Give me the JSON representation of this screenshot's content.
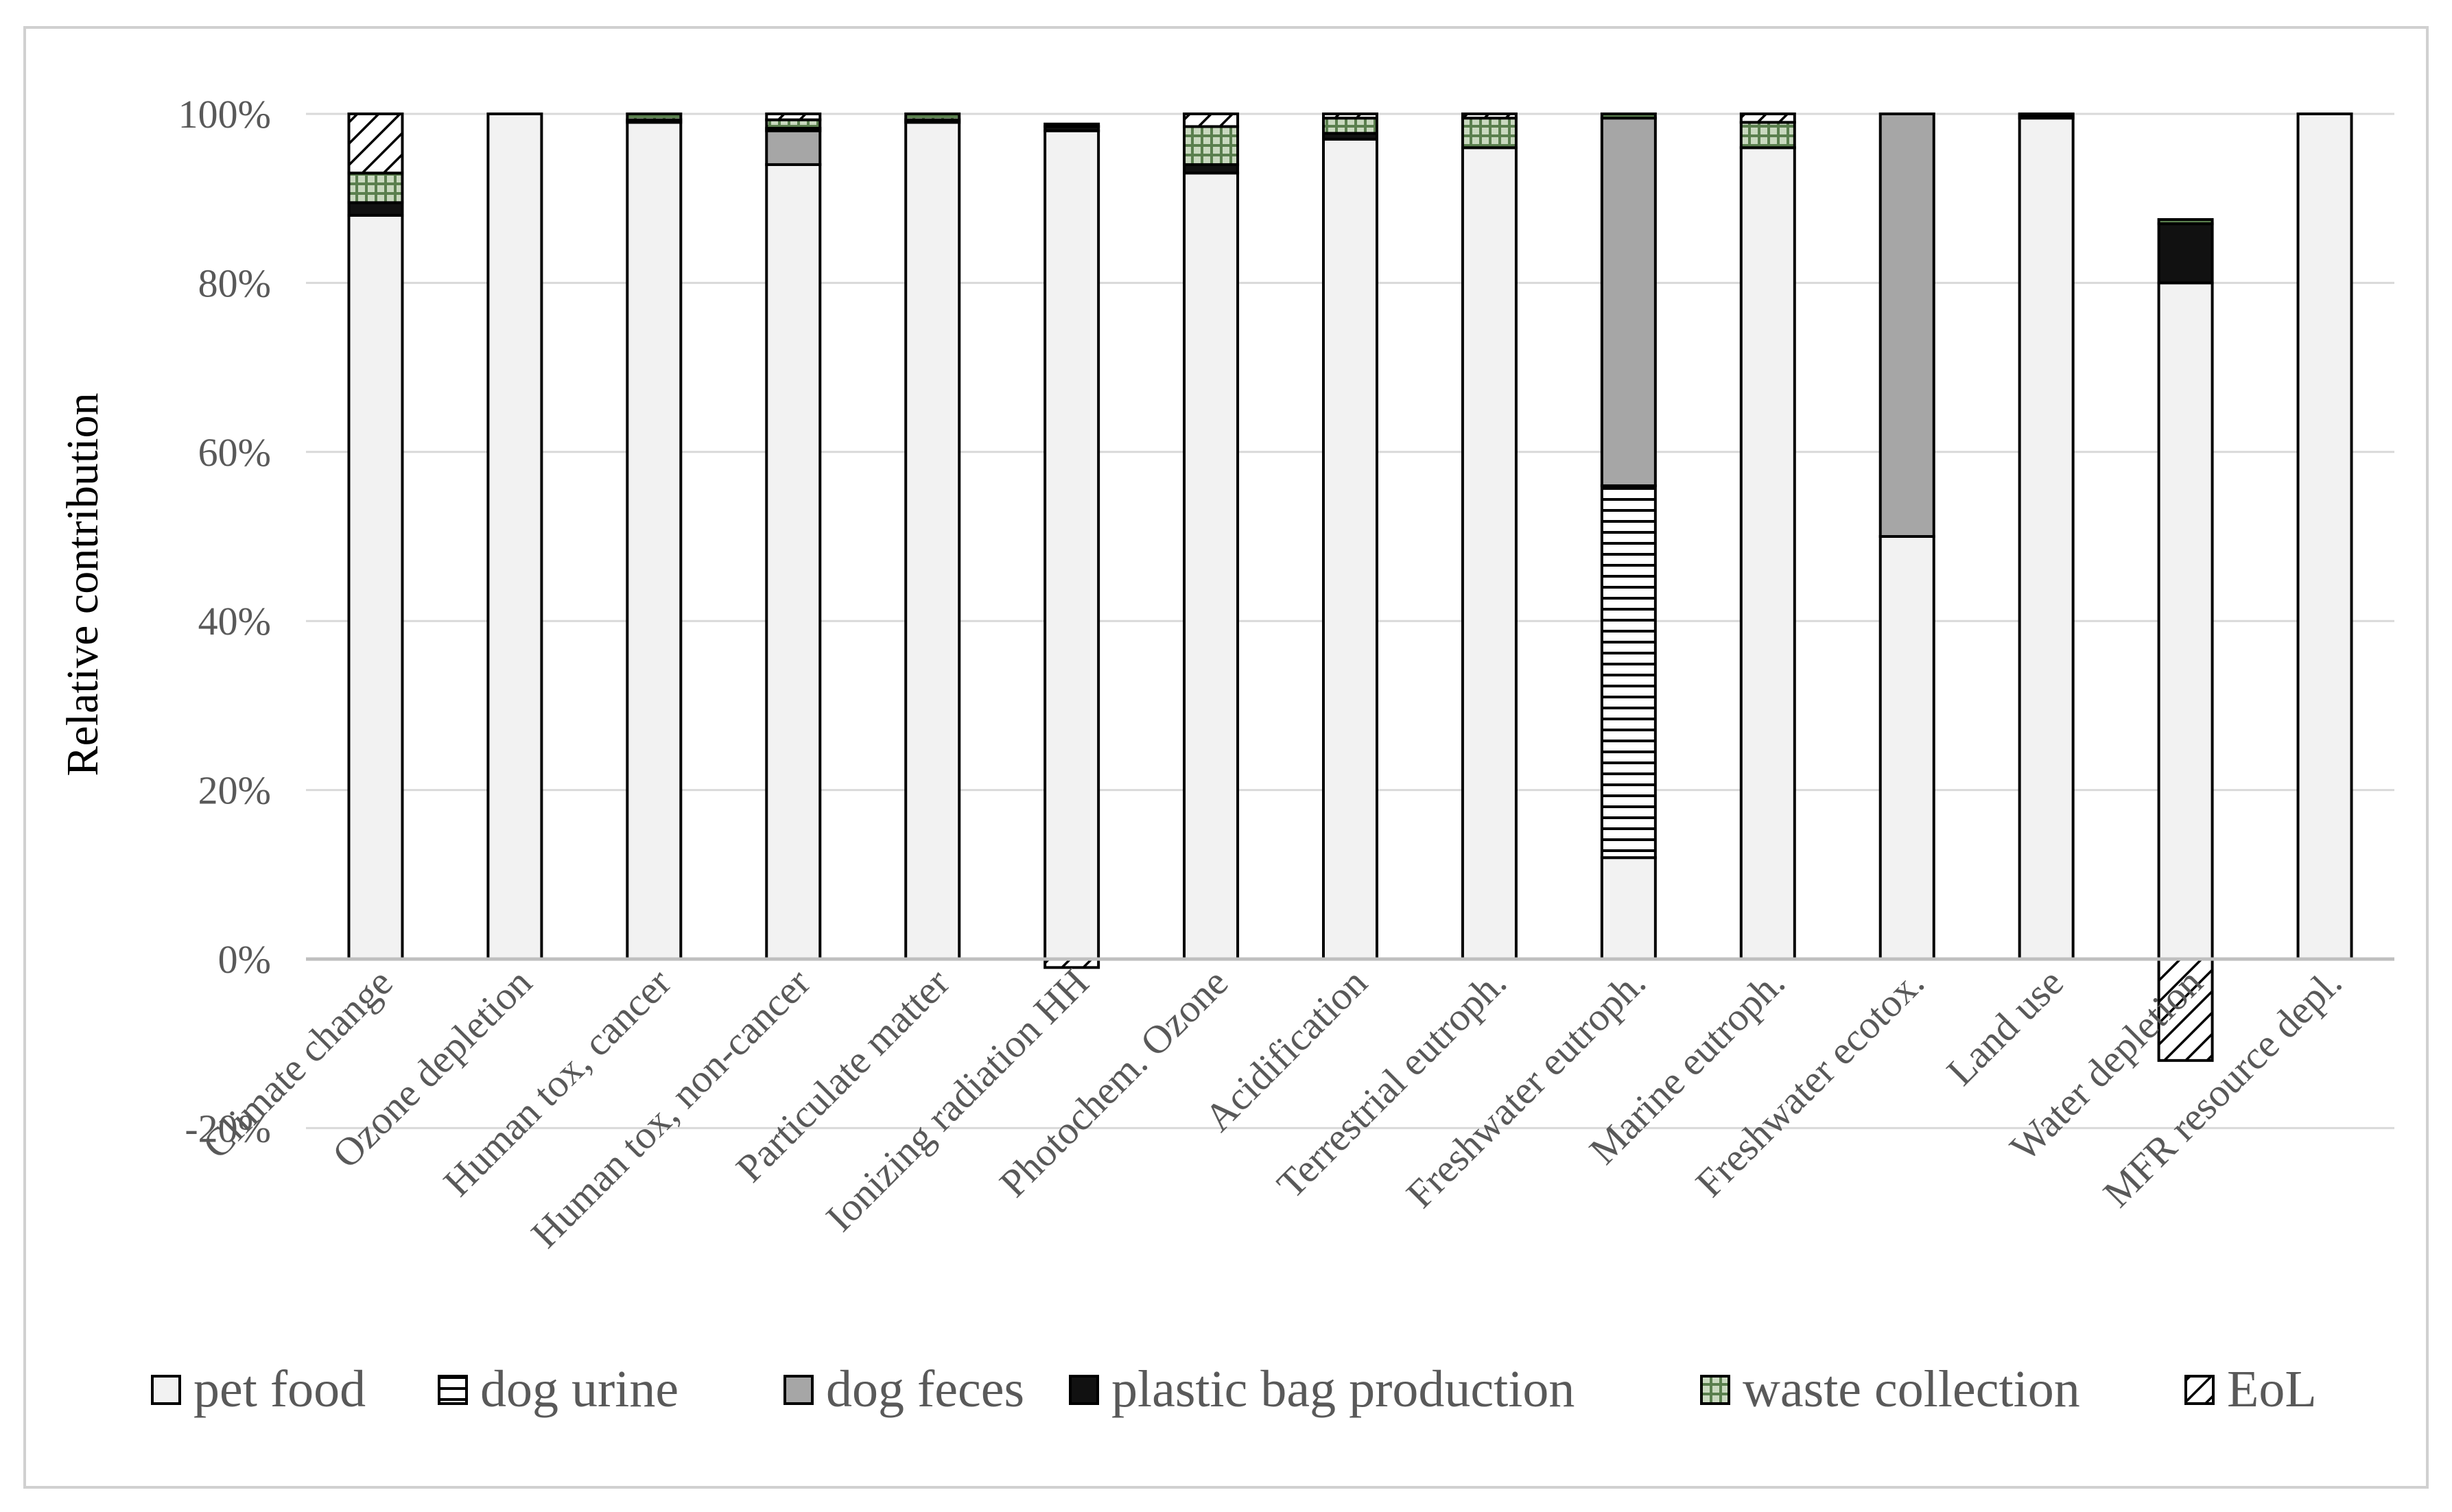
{
  "chart_data": {
    "type": "bar",
    "stacked": true,
    "ylabel": "Relative contribution",
    "xlabel": "",
    "ylim": [
      -20,
      100
    ],
    "yticks": [
      -20,
      0,
      20,
      40,
      60,
      80,
      100
    ],
    "ytick_labels": [
      "-20%",
      "0%",
      "20%",
      "40%",
      "60%",
      "80%",
      "100%"
    ],
    "grid": true,
    "legend_position": "bottom",
    "categories": [
      "Climate change",
      "Ozone depletion",
      "Human tox, cancer",
      "Human tox, non-cancer",
      "Particulate matter",
      "Ionizing radiation HH",
      "Photochem. Ozone",
      "Acidification",
      "Terrestrial eutroph.",
      "Freshwater eutroph.",
      "Marine eutroph.",
      "Freshwater ecotox.",
      "Land use",
      "Water depletion",
      "MFR resource depl."
    ],
    "series": [
      {
        "name": "pet food",
        "pattern": "solid-light",
        "color": "#f2f2f2",
        "values": [
          88,
          100,
          99,
          94,
          99,
          98,
          93,
          97,
          96,
          12,
          96,
          50,
          99.5,
          80,
          100
        ]
      },
      {
        "name": "dog urine",
        "pattern": "horizontal-lines",
        "color": "#ffffff",
        "values": [
          0,
          0,
          0,
          0,
          0,
          0,
          0,
          0,
          0,
          44,
          0,
          0,
          0,
          0,
          0
        ]
      },
      {
        "name": "dog feces",
        "pattern": "solid-gray",
        "color": "#a6a6a6",
        "values": [
          0,
          0,
          0,
          4,
          0,
          0,
          0,
          0,
          0,
          43.5,
          0,
          50,
          0,
          0,
          0
        ]
      },
      {
        "name": "plastic bag production",
        "pattern": "solid-black",
        "color": "#111111",
        "values": [
          1.5,
          0,
          0.3,
          0.3,
          0.3,
          0.5,
          1,
          0.7,
          0,
          0,
          0,
          0,
          0.3,
          7,
          0
        ]
      },
      {
        "name": "waste collection",
        "pattern": "green-grid",
        "color": "#6a8f5c",
        "values": [
          3.5,
          0,
          0.7,
          1,
          0.7,
          0.3,
          4.5,
          1.8,
          3.5,
          0.5,
          3,
          0,
          0.2,
          0.5,
          0
        ]
      },
      {
        "name": "EoL",
        "pattern": "diagonal-hatch",
        "color": "#ffffff",
        "values": [
          7,
          0,
          0,
          0.7,
          0,
          -1,
          1.5,
          0.5,
          0.5,
          0,
          1,
          0,
          0,
          -12,
          0
        ]
      }
    ]
  }
}
